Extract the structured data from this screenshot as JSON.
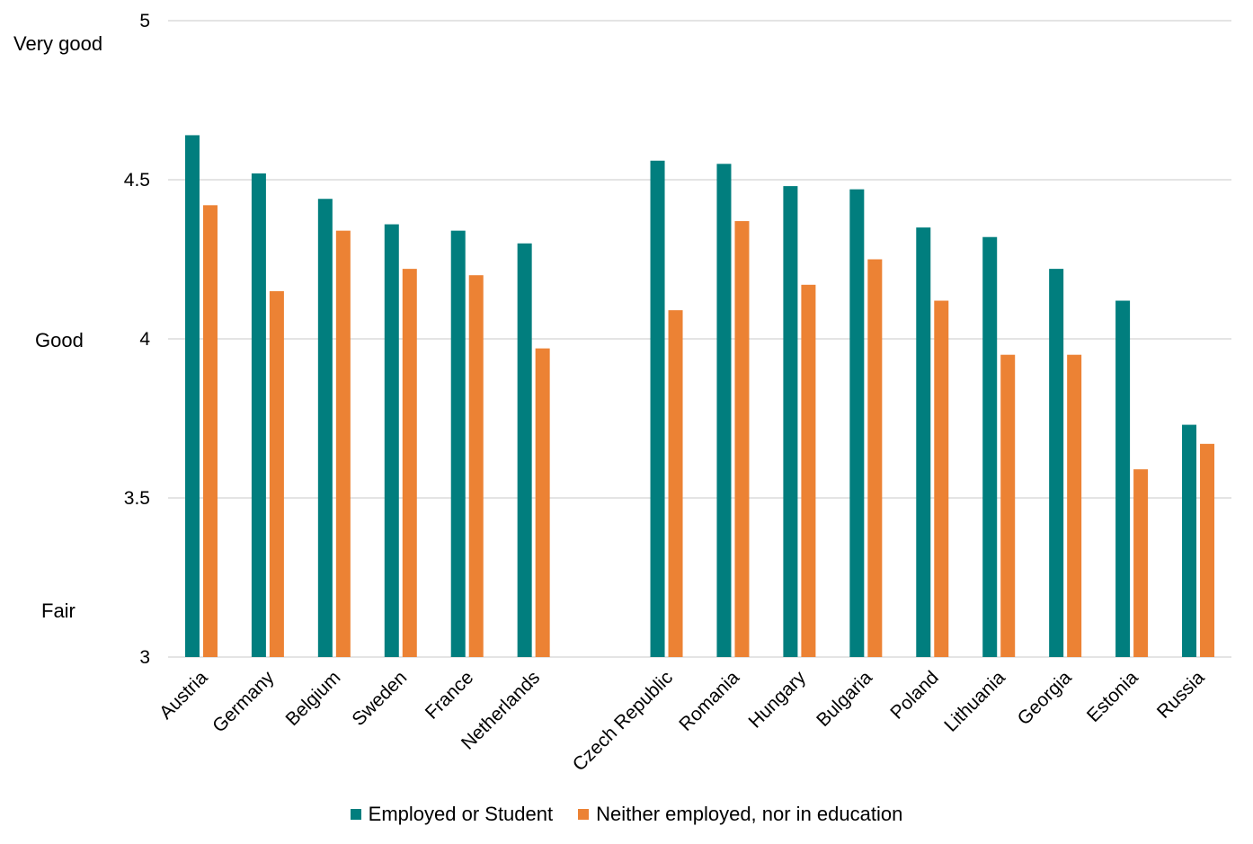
{
  "chart_data": {
    "type": "bar",
    "title": "",
    "xlabel": "",
    "ylabel": "",
    "ylim": [
      3,
      5
    ],
    "yticks": [
      "3",
      "3.5",
      "4",
      "4.5",
      "5"
    ],
    "scale_labels": {
      "very_good": "Very good",
      "good": "Good",
      "fair": "Fair"
    },
    "grid": true,
    "legend_position": "bottom",
    "groups": [
      [
        "Austria",
        "Germany",
        "Belgium",
        "Sweden",
        "France",
        "Netherlands"
      ],
      [
        "Czech Republic",
        "Romania",
        "Hungary",
        "Bulgaria",
        "Poland",
        "Lithuania",
        "Georgia",
        "Estonia",
        "Russia"
      ]
    ],
    "categories": [
      "Austria",
      "Germany",
      "Belgium",
      "Sweden",
      "France",
      "Netherlands",
      "Czech Republic",
      "Romania",
      "Hungary",
      "Bulgaria",
      "Poland",
      "Lithuania",
      "Georgia",
      "Estonia",
      "Russia"
    ],
    "series": [
      {
        "name": "Employed or Student",
        "color": "#017E7E",
        "values": [
          4.64,
          4.52,
          4.44,
          4.36,
          4.34,
          4.3,
          4.56,
          4.55,
          4.48,
          4.47,
          4.35,
          4.32,
          4.22,
          4.12,
          3.73
        ]
      },
      {
        "name": "Neither employed, nor in education",
        "color": "#EC8234",
        "values": [
          4.42,
          4.15,
          4.34,
          4.22,
          4.2,
          3.97,
          4.09,
          4.37,
          4.17,
          4.25,
          4.12,
          3.95,
          3.95,
          3.59,
          3.67
        ]
      }
    ]
  }
}
